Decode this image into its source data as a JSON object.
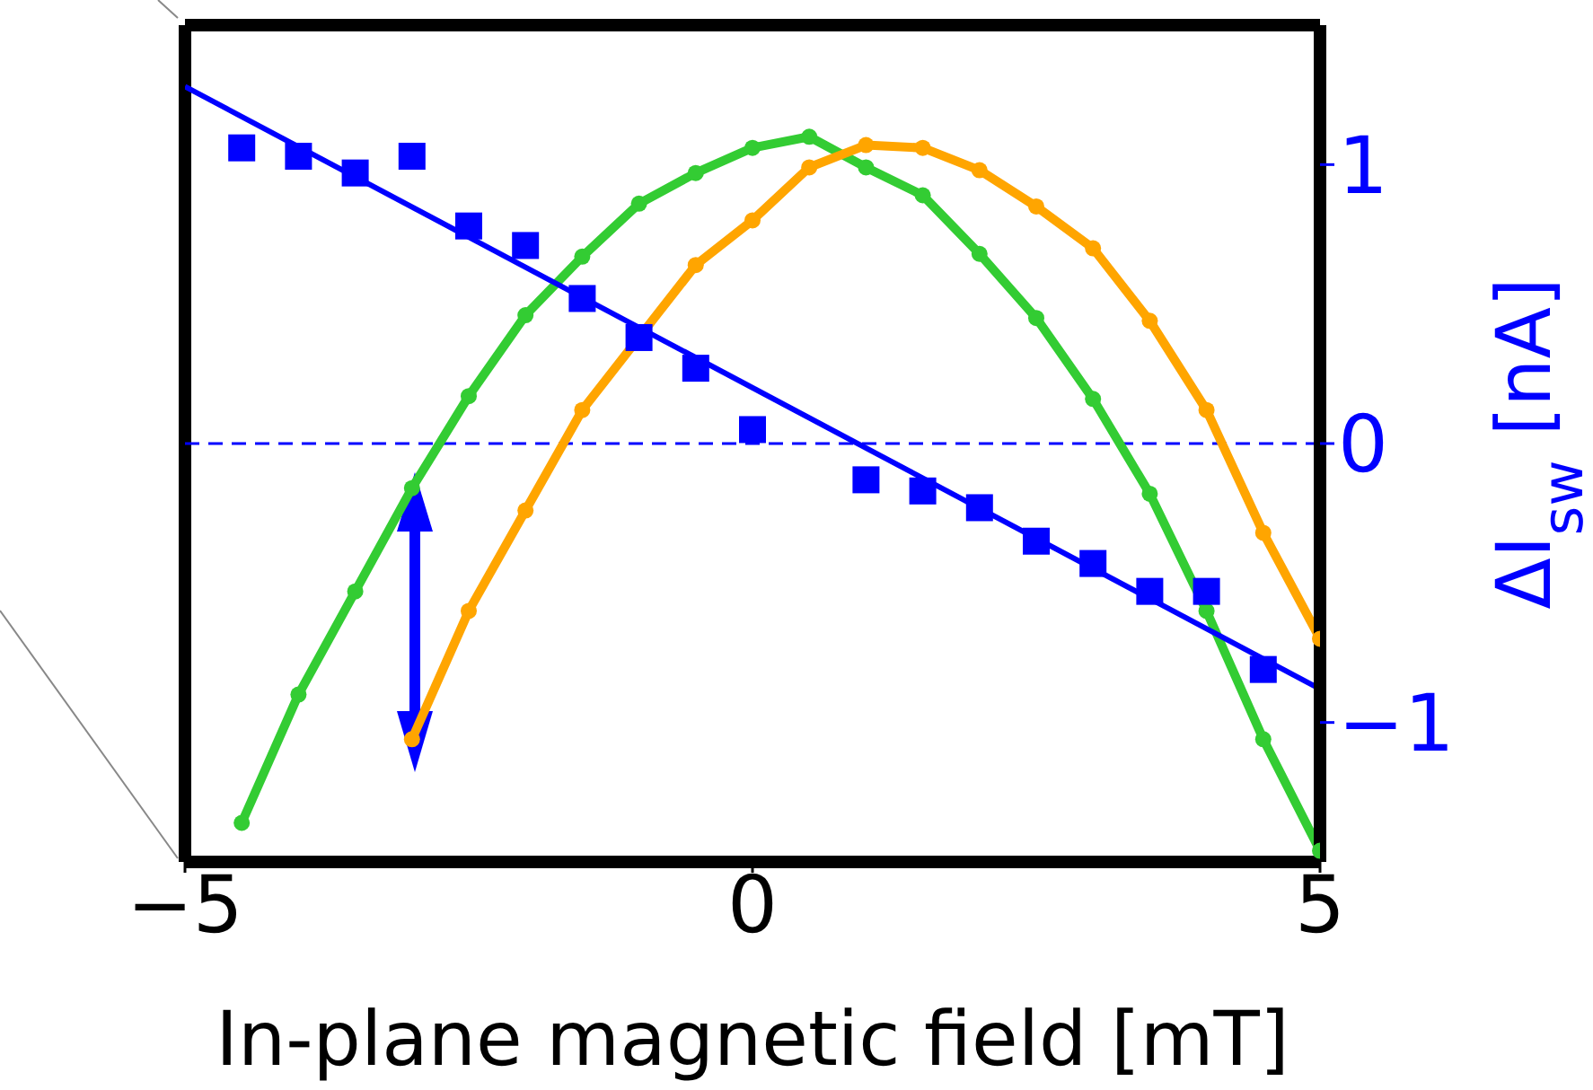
{
  "chart_data": {
    "type": "line",
    "xlabel": "In-plane magnetic field [mT]",
    "y2label": "ΔI$_{sw}$ [nA]",
    "xlim": [
      -5,
      5
    ],
    "xticks": [
      -5,
      0,
      5
    ],
    "y2lim": [
      -1.5,
      1.5
    ],
    "y2ticks": [
      -1,
      0,
      1
    ],
    "grid": false,
    "ref_lines": [
      {
        "axis": "y2",
        "value": 0,
        "color": "#0000ff",
        "line_style": "dashed"
      }
    ],
    "series": [
      {
        "type": "line",
        "axis": "y2",
        "color": "#33cc33",
        "marker": "circle",
        "x": [
          -4.5,
          -4,
          -3.5,
          -3,
          -2.5,
          -2,
          -1.5,
          -1,
          -0.5,
          0,
          0.5,
          1,
          1.5,
          2,
          2.5,
          3,
          3.5,
          4,
          4.5,
          5
        ],
        "values": [
          -1.36,
          -0.9,
          -0.53,
          -0.16,
          0.17,
          0.46,
          0.67,
          0.86,
          0.97,
          1.06,
          1.1,
          0.99,
          0.89,
          0.68,
          0.45,
          0.16,
          -0.18,
          -0.6,
          -1.06,
          -1.46
        ]
      },
      {
        "type": "line",
        "axis": "y2",
        "color": "#ffa500",
        "marker": "circle",
        "x": [
          -3,
          -2.5,
          -2,
          -1.5,
          -1,
          -0.5,
          0,
          0.5,
          1,
          1.5,
          2,
          2.5,
          3,
          3.5,
          4,
          4.5,
          5
        ],
        "values": [
          -1.06,
          -0.6,
          -0.24,
          0.12,
          null,
          0.64,
          0.8,
          0.99,
          1.07,
          1.06,
          0.98,
          0.85,
          0.7,
          0.44,
          0.12,
          -0.32,
          -0.7
        ]
      },
      {
        "type": "scatter",
        "axis": "y2",
        "color": "#0000ff",
        "marker": "square",
        "x": [
          -4.5,
          -4,
          -3.5,
          -3,
          -2.5,
          -2,
          -1.5,
          -1,
          -0.5,
          0,
          1,
          1.5,
          2,
          2.5,
          3,
          3.5,
          4,
          4.5
        ],
        "values": [
          1.06,
          1.03,
          0.97,
          1.03,
          0.78,
          0.71,
          0.52,
          0.38,
          0.27,
          0.05,
          -0.13,
          -0.17,
          -0.23,
          -0.35,
          -0.43,
          -0.53,
          -0.53,
          -0.81
        ]
      },
      {
        "type": "line",
        "axis": "y2",
        "color": "#0000ff",
        "marker": "none",
        "x": [
          -5,
          5
        ],
        "values": [
          1.28,
          -0.88
        ]
      }
    ]
  }
}
